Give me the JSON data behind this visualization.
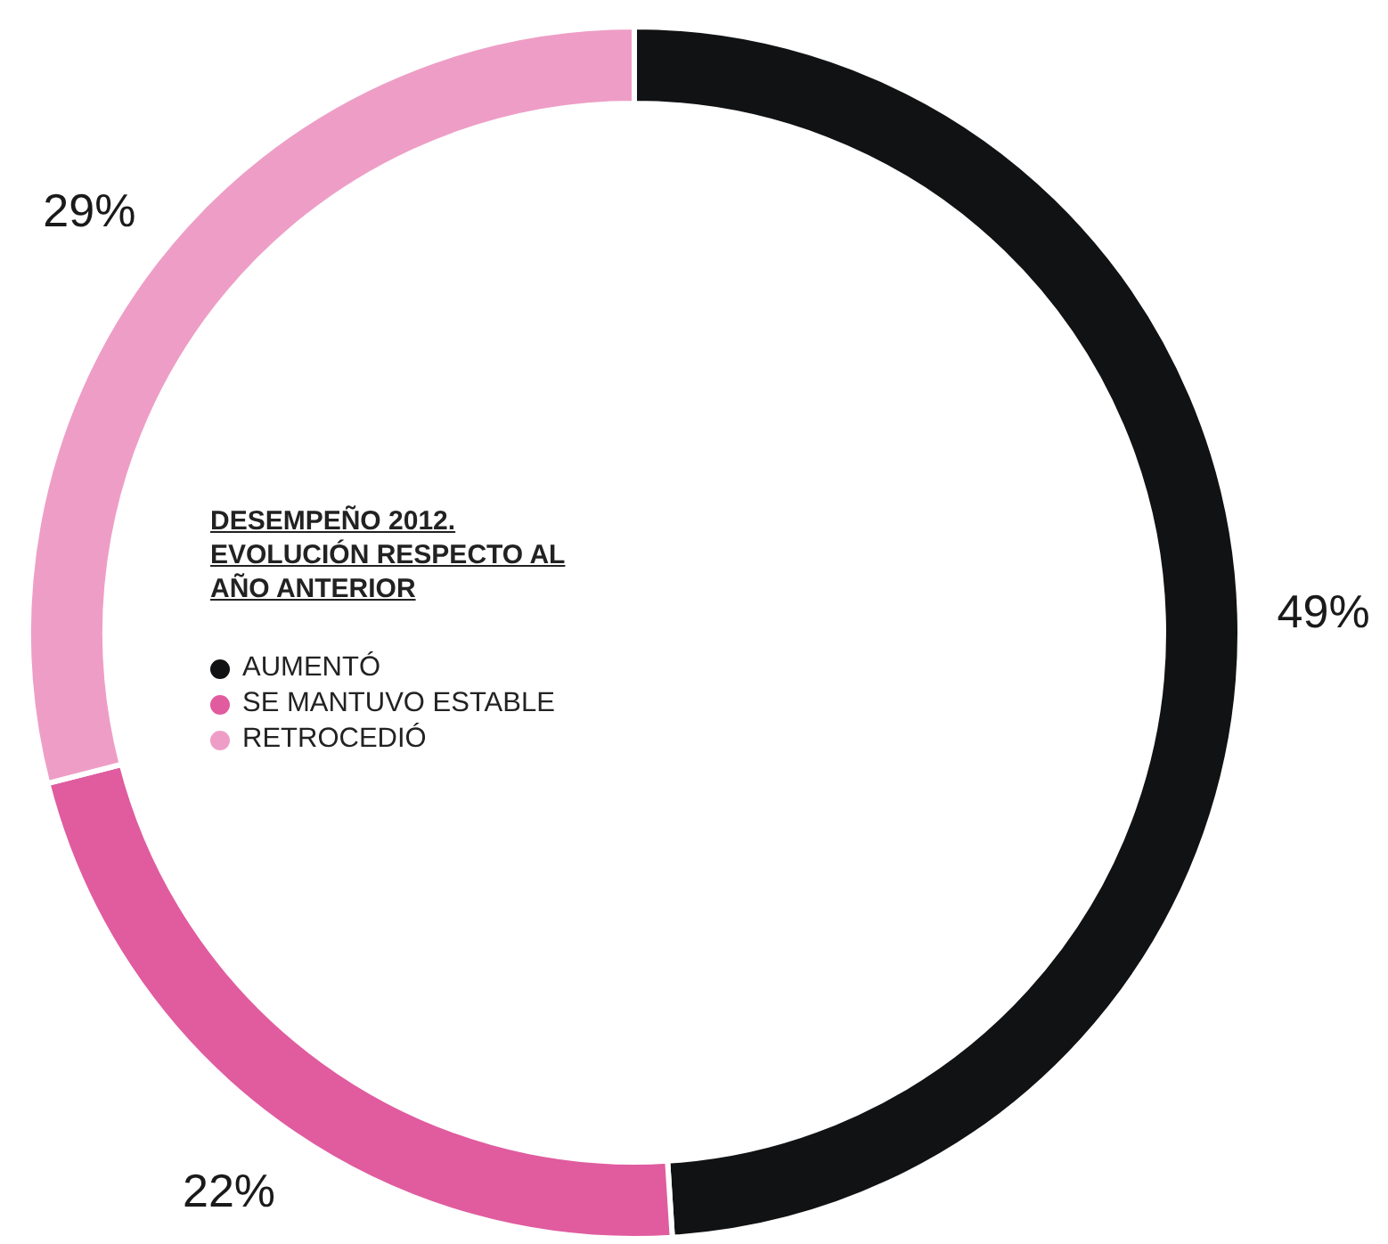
{
  "chart_data": {
    "type": "donut",
    "title": "DESEMPEÑO 2012. EVOLUCIÓN RESPECTO AL AÑO ANTERIOR",
    "categories": [
      "AUMENTÓ",
      "SE MANTUVO ESTABLE",
      "RETROCEDIÓ"
    ],
    "values": [
      49,
      22,
      29
    ],
    "colors": [
      "#111214",
      "#e05c9f",
      "#ee9ec6"
    ],
    "value_labels": [
      "49%",
      "22%",
      "29%"
    ],
    "legend": "center"
  }
}
